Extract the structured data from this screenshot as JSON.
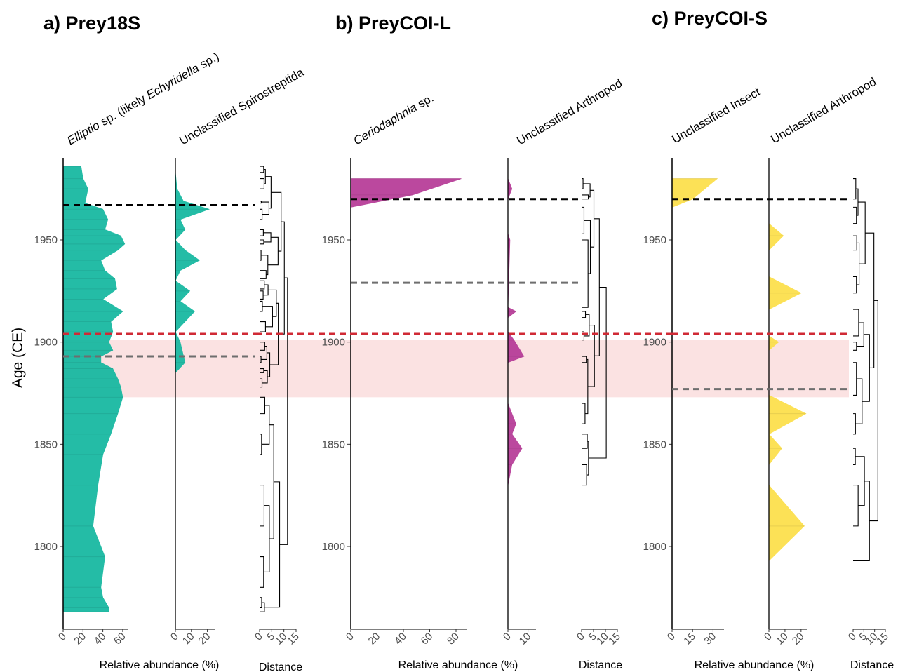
{
  "figure": {
    "y_axis_label": "Age (CE)",
    "x_label_abundance": "Relative abundance (%)",
    "x_label_distance": "Distance"
  },
  "chart_data": [
    {
      "id": "a",
      "type": "area",
      "title": "a)  Prey18S",
      "ylabel": "Age (CE)",
      "ylim": [
        1762,
        1987
      ],
      "yticks": [
        1800,
        1850,
        1900,
        1950
      ],
      "color": "#14b8a0",
      "xlabel": "Relative abundance (%)",
      "series": [
        {
          "name": "Elliptio sp. (likely Echyridella sp.)",
          "label_parts": [
            {
              "text": "Elliptio",
              "italic": true
            },
            {
              "text": " sp. (likely ",
              "italic": false
            },
            {
              "text": "Echyridella",
              "italic": true
            },
            {
              "text": " sp.)",
              "italic": false
            }
          ],
          "xlim": [
            0,
            65
          ],
          "xticks": [
            0,
            20,
            40,
            60
          ],
          "ages": [
            1986,
            1980,
            1975,
            1968,
            1965,
            1960,
            1955,
            1952,
            1948,
            1945,
            1940,
            1935,
            1931,
            1926,
            1921,
            1915,
            1910,
            1905,
            1900,
            1896,
            1893,
            1890,
            1887,
            1882,
            1878,
            1873,
            1865,
            1855,
            1845,
            1830,
            1810,
            1795,
            1780,
            1775,
            1770,
            1768
          ],
          "values": [
            18,
            20,
            25,
            22,
            40,
            45,
            42,
            58,
            62,
            55,
            38,
            42,
            52,
            54,
            40,
            60,
            48,
            50,
            46,
            50,
            38,
            38,
            50,
            55,
            58,
            60,
            55,
            48,
            40,
            35,
            30,
            42,
            38,
            40,
            46,
            46
          ]
        },
        {
          "name": "Unclassified Spirostreptida",
          "label_parts": [
            {
              "text": "Unclassified Spirostreptida",
              "italic": false
            }
          ],
          "xlim": [
            0,
            25
          ],
          "xticks": [
            0,
            10,
            20
          ],
          "ages": [
            1983,
            1975,
            1969,
            1965,
            1960,
            1955,
            1950,
            1945,
            1940,
            1935,
            1930,
            1925,
            1920,
            1915,
            1905,
            1900,
            1890,
            1885
          ],
          "values": [
            0,
            1,
            5,
            21,
            3,
            6,
            0,
            6,
            15,
            3,
            0,
            9,
            3,
            12,
            0,
            3,
            6,
            0
          ]
        }
      ],
      "dendrogram": {
        "xlabel": "Distance",
        "xlim": [
          0,
          15
        ],
        "xticks": [
          0,
          5,
          10,
          15
        ]
      }
    },
    {
      "id": "b",
      "type": "area",
      "title": "b)  PreyCOI-L",
      "ylabel": "Age (CE)",
      "ylim": [
        1762,
        1987
      ],
      "yticks": [
        1800,
        1850,
        1900,
        1950
      ],
      "color": "#b63b97",
      "xlabel": "Relative abundance (%)",
      "series": [
        {
          "name": "Ceriodaphnia sp.",
          "label_parts": [
            {
              "text": "Ceriodaphnia",
              "italic": true
            },
            {
              "text": " sp.",
              "italic": false
            }
          ],
          "xlim": [
            0,
            88
          ],
          "xticks": [
            0,
            20,
            40,
            60,
            80
          ],
          "ages": [
            1980,
            1980,
            1972,
            1966,
            1966
          ],
          "values": [
            0,
            84,
            47,
            0,
            0
          ]
        },
        {
          "name": "Unclassified Arthropod",
          "label_parts": [
            {
              "text": "Unclassified Arthropod",
              "italic": false
            }
          ],
          "xlim": [
            0,
            14
          ],
          "xticks": [
            0,
            10
          ],
          "ages": [
            1980,
            1975,
            1970,
            1953,
            1950,
            1917,
            1915,
            1912,
            1905,
            1901,
            1893,
            1890,
            1870,
            1860,
            1855,
            1848,
            1840,
            1830
          ],
          "values": [
            0,
            2,
            0,
            0,
            1,
            0,
            4,
            0,
            0,
            3,
            8,
            0,
            0,
            4,
            2,
            7,
            2,
            0
          ]
        }
      ],
      "dendrogram": {
        "xlabel": "Distance",
        "xlim": [
          0,
          15
        ],
        "xticks": [
          0,
          5,
          10,
          15
        ]
      }
    },
    {
      "id": "c",
      "type": "area",
      "title": "c)  PreyCOI-S",
      "ylabel": "Age (CE)",
      "ylim": [
        1762,
        1987
      ],
      "yticks": [
        1800,
        1850,
        1900,
        1950
      ],
      "color": "#fcdf4a",
      "xlabel": "Relative abundance (%)",
      "series": [
        {
          "name": "Unclassified Insect",
          "label_parts": [
            {
              "text": "Unclassified Insect",
              "italic": false
            }
          ],
          "xlim": [
            0,
            38
          ],
          "xticks": [
            0,
            15,
            30
          ],
          "ages": [
            1980,
            1980,
            1970,
            1966
          ],
          "values": [
            0,
            33,
            15,
            0
          ]
        },
        {
          "name": "Unclassified Arthropod",
          "label_parts": [
            {
              "text": "Unclassified Arthropod",
              "italic": false
            }
          ],
          "xlim": [
            0,
            24
          ],
          "xticks": [
            0,
            10,
            20
          ],
          "ages": [
            1958,
            1952,
            1945,
            1932,
            1924,
            1916,
            1903,
            1900,
            1896,
            1890,
            1874,
            1865,
            1855,
            1848,
            1840,
            1830,
            1810,
            1793
          ],
          "values": [
            0,
            9,
            0,
            0,
            20,
            0,
            0,
            6,
            0,
            0,
            0,
            23,
            0,
            8,
            0,
            0,
            22,
            0
          ]
        }
      ],
      "dendrogram": {
        "xlabel": "Distance",
        "xlim": [
          0,
          15
        ],
        "xticks": [
          0,
          5,
          10,
          15
        ]
      }
    }
  ],
  "overlays": {
    "band": {
      "from": 1873,
      "to": 1901,
      "color": "#f7c5c6"
    },
    "red_line": {
      "age": 1904,
      "color": "#d02a35"
    },
    "black_lines": {
      "a": 1967,
      "b": 1970,
      "c": 1970
    },
    "gray_lines": {
      "a": 1893,
      "b": 1929,
      "c": 1877
    },
    "line_colors": {
      "black": "#000000",
      "gray": "#6e6e6e"
    }
  }
}
